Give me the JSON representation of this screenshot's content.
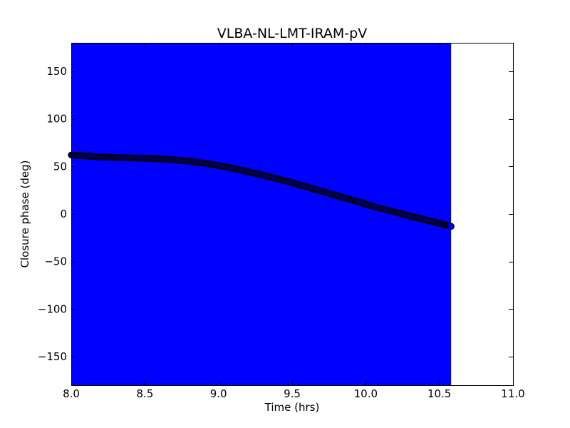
{
  "chart_data": {
    "type": "scatter",
    "title": "VLBA-NL-LMT-IRAM-pV",
    "xlabel": "Time (hrs)",
    "ylabel": "Closure phase (deg)",
    "xlim": [
      8.0,
      11.0
    ],
    "ylim": [
      -180,
      180
    ],
    "xticks": [
      8.0,
      8.5,
      9.0,
      9.5,
      10.0,
      10.5,
      11.0
    ],
    "xtick_labels": [
      "8.0",
      "8.5",
      "9.0",
      "9.5",
      "10.0",
      "10.5",
      "11.0"
    ],
    "yticks": [
      150,
      100,
      50,
      0,
      -50,
      -100,
      -150
    ],
    "ytick_labels": [
      "150",
      "100",
      "50",
      "0",
      "−50",
      "−100",
      "−150"
    ],
    "grid": false,
    "error_band": {
      "x_range": [
        8.0,
        10.58
      ],
      "y_range": [
        -180,
        180
      ],
      "color": "#0000ff"
    },
    "series": [
      {
        "marker": "circle",
        "color": "#0000ff",
        "edge_color": "#000000",
        "x": [
          8.0,
          8.1,
          8.2,
          8.3,
          8.4,
          8.5,
          8.6,
          8.7,
          8.8,
          8.9,
          9.0,
          9.1,
          9.2,
          9.3,
          9.4,
          9.5,
          9.6,
          9.7,
          9.8,
          9.9,
          10.0,
          10.1,
          10.2,
          10.3,
          10.4,
          10.5,
          10.58
        ],
        "y": [
          62,
          61,
          60,
          59.5,
          59,
          58.5,
          58,
          57,
          55.5,
          53.5,
          51,
          48,
          44.5,
          41,
          37,
          33,
          28.5,
          24,
          19.5,
          15,
          10.5,
          6,
          2,
          -2,
          -6,
          -9.5,
          -13
        ]
      }
    ]
  }
}
